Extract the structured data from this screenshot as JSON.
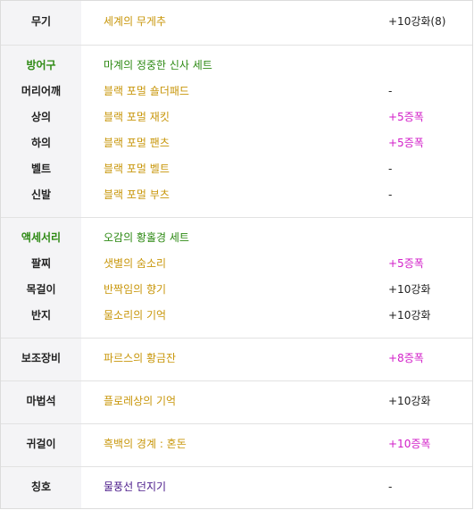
{
  "colors": {
    "label_bg": "#f4f4f6",
    "gold": "#c8960a",
    "green": "#2e8a14",
    "magenta": "#d21ec8",
    "purple": "#4a1a8a",
    "text": "#222222"
  },
  "weapon": {
    "label": "무기",
    "item": "세계의 무게추",
    "extra": "+10강화(8)"
  },
  "armor": {
    "label": "방어구",
    "set_name": "마계의 정중한 신사 세트",
    "rows": [
      {
        "label": "머리어깨",
        "item": "블랙 포멀 숄더패드",
        "extra": "-"
      },
      {
        "label": "상의",
        "item": "블랙 포멀 재킷",
        "extra": "+5증폭"
      },
      {
        "label": "하의",
        "item": "블랙 포멀 팬츠",
        "extra": "+5증폭"
      },
      {
        "label": "벨트",
        "item": "블랙 포멀 벨트",
        "extra": "-"
      },
      {
        "label": "신발",
        "item": "블랙 포멀 부츠",
        "extra": "-"
      }
    ]
  },
  "accessory": {
    "label": "액세서리",
    "set_name": "오감의 황홀경 세트",
    "rows": [
      {
        "label": "팔찌",
        "item": "샛별의 숨소리",
        "extra": "+5증폭"
      },
      {
        "label": "목걸이",
        "item": "반짝임의 향기",
        "extra": "+10강화"
      },
      {
        "label": "반지",
        "item": "물소리의 기억",
        "extra": "+10강화"
      }
    ]
  },
  "sub": {
    "label": "보조장비",
    "item": "파르스의 황금잔",
    "extra": "+8증폭"
  },
  "magicstone": {
    "label": "마법석",
    "item": "플로레상의 기억",
    "extra": "+10강화"
  },
  "earring": {
    "label": "귀걸이",
    "item": "흑백의 경계 : 혼돈",
    "extra": "+10증폭"
  },
  "title": {
    "label": "칭호",
    "item": "물풍선 던지기",
    "extra": "-"
  }
}
